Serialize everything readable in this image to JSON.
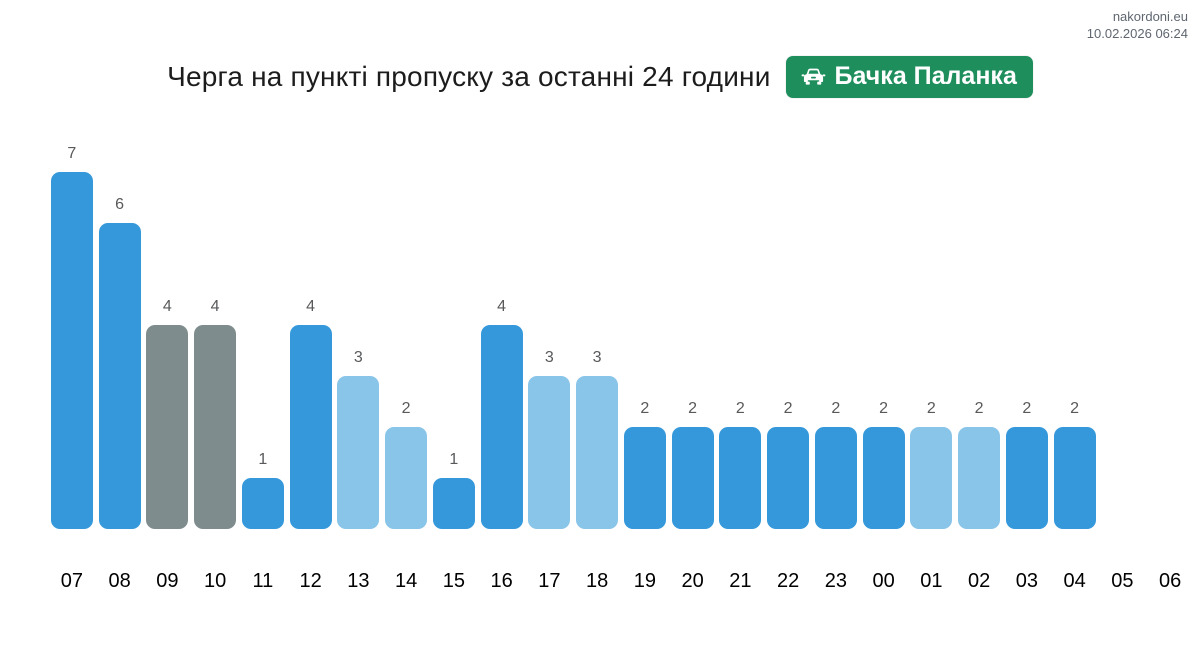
{
  "meta": {
    "site": "nakordoni.eu",
    "timestamp": "10.02.2026 06:24"
  },
  "header": {
    "title": "Черга на пункті пропуску за останні 24 години",
    "badge": {
      "label": "Бачка Паланка",
      "icon": "car-icon",
      "color": "#1e8f5c"
    }
  },
  "chart_data": {
    "type": "bar",
    "title": "Черга на пункті пропуску за останні 24 години",
    "xlabel": "",
    "ylabel": "",
    "grid": false,
    "legend": "none",
    "ylim": [
      0,
      7.5
    ],
    "categories": [
      "07",
      "08",
      "09",
      "10",
      "11",
      "12",
      "13",
      "14",
      "15",
      "16",
      "17",
      "18",
      "19",
      "20",
      "21",
      "22",
      "23",
      "00",
      "01",
      "02",
      "03",
      "04",
      "05",
      "06"
    ],
    "values": [
      7,
      6,
      4,
      4,
      1,
      4,
      3,
      2,
      1,
      4,
      3,
      3,
      2,
      2,
      2,
      2,
      2,
      2,
      2,
      2,
      2,
      2,
      null,
      null
    ],
    "bar_color_keys": [
      "blue",
      "blue",
      "gray",
      "gray",
      "blue",
      "blue",
      "light_blue",
      "light_blue",
      "blue",
      "blue",
      "light_blue",
      "light_blue",
      "blue",
      "blue",
      "blue",
      "blue",
      "blue",
      "blue",
      "light_blue",
      "light_blue",
      "blue",
      "blue",
      null,
      null
    ],
    "colors": {
      "blue": "#3498db",
      "light_blue": "#89c4e9",
      "gray": "#7f8c8d"
    },
    "value_label_color": "#58595b",
    "tick_label_color": "#000000"
  }
}
